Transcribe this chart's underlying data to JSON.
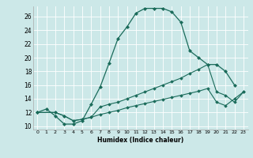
{
  "xlabel": "Humidex (Indice chaleur)",
  "bg_color": "#cce8e8",
  "line_color": "#1a6b5a",
  "xlim": [
    -0.5,
    23.5
  ],
  "ylim": [
    9.5,
    27.5
  ],
  "yticks": [
    10,
    12,
    14,
    16,
    18,
    20,
    22,
    24,
    26
  ],
  "xticks": [
    0,
    1,
    2,
    3,
    4,
    5,
    6,
    7,
    8,
    9,
    10,
    11,
    12,
    13,
    14,
    15,
    16,
    17,
    18,
    19,
    20,
    21,
    22,
    23
  ],
  "line1_x": [
    0,
    1,
    2,
    3,
    4,
    5,
    6,
    7,
    8,
    9,
    10,
    11,
    12,
    13,
    14,
    15,
    16,
    17,
    18,
    19,
    20,
    21,
    22
  ],
  "line1_y": [
    12,
    12.5,
    11.5,
    10.3,
    10.3,
    10.8,
    13.2,
    15.7,
    19.2,
    22.8,
    24.5,
    26.5,
    27.2,
    27.2,
    27.2,
    26.7,
    25.2,
    21.0,
    20.0,
    19.0,
    19.0,
    18.0,
    16.0
  ],
  "line2_x": [
    0,
    2,
    3,
    4,
    5,
    6,
    7,
    8,
    9,
    10,
    11,
    12,
    13,
    14,
    15,
    16,
    17,
    18,
    19,
    20,
    21,
    22,
    23
  ],
  "line2_y": [
    12,
    12.0,
    11.5,
    10.8,
    11.0,
    11.3,
    12.8,
    13.2,
    13.5,
    14.0,
    14.5,
    15.0,
    15.5,
    16.0,
    16.5,
    17.0,
    17.7,
    18.3,
    19.0,
    15.0,
    14.5,
    13.5,
    15.0
  ],
  "line3_x": [
    0,
    2,
    3,
    4,
    5,
    6,
    7,
    8,
    9,
    10,
    11,
    12,
    13,
    14,
    15,
    16,
    17,
    18,
    19,
    20,
    21,
    22,
    23
  ],
  "line3_y": [
    12,
    12.0,
    11.5,
    10.8,
    11.0,
    11.3,
    11.7,
    12.0,
    12.3,
    12.7,
    13.0,
    13.3,
    13.6,
    13.9,
    14.2,
    14.5,
    14.8,
    15.1,
    15.5,
    13.5,
    13.0,
    14.0,
    15.0
  ]
}
